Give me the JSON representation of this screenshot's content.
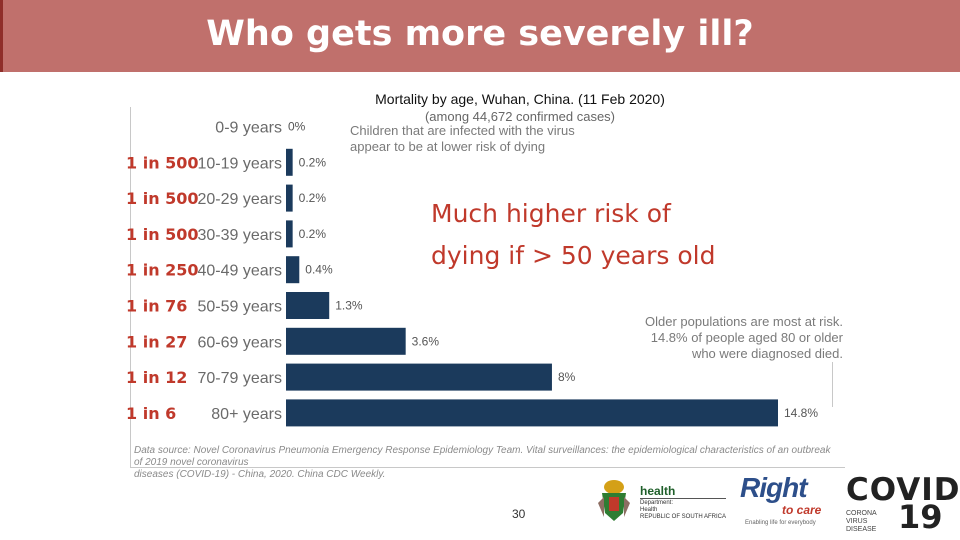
{
  "slide": {
    "title": "Who gets more severely ill?",
    "callout_line1": "Much higher risk of",
    "callout_line2": "dying if > 50 years old",
    "note_children_line1": "Children that are infected with the virus",
    "note_children_line2": "appear to be at lower risk of dying",
    "note_older_line1": "Older populations are most at risk.",
    "note_older_line2": "14.8% of people aged 80 or older",
    "note_older_line3": "who were diagnosed died.",
    "source_line1": "Data source: Novel Coronavirus Pneumonia Emergency Response Epidemiology Team. Vital surveillances: the epidemiological characteristics of an outbreak of 2019 novel coronavirus",
    "source_line2": "diseases (COVID-19) - China, 2020. China CDC Weekly.",
    "slide_number": "30"
  },
  "logos": {
    "health": "health",
    "health_sub1": "Department:",
    "health_sub2": "Health",
    "health_sub3": "REPUBLIC OF SOUTH AFRICA",
    "right_to_care_main": "Right",
    "right_to_care_sub": "to care",
    "right_to_care_tag": "Enabling life for everybody",
    "covid_word": "COVID",
    "covid_number": "19",
    "covid_sub": "CORONA VIRUS DISEASE"
  },
  "colors": {
    "title_bar": "#c0706c",
    "bar": "#1b3a5c",
    "risk_text": "#c0392b"
  },
  "chart_data": {
    "type": "bar",
    "orientation": "horizontal",
    "title": "Mortality by age, Wuhan, China. (11 Feb 2020)",
    "subtitle": "(among 44,672 confirmed cases)",
    "categories": [
      "0-9 years",
      "10-19 years",
      "20-29 years",
      "30-39 years",
      "40-49 years",
      "50-59 years",
      "60-69 years",
      "70-79 years",
      "80+ years"
    ],
    "values": [
      0,
      0.2,
      0.2,
      0.2,
      0.4,
      1.3,
      3.6,
      8,
      14.8
    ],
    "value_labels": [
      "0%",
      "0.2%",
      "0.2%",
      "0.2%",
      "0.4%",
      "1.3%",
      "3.6%",
      "8%",
      "14.8%"
    ],
    "risk_labels": [
      "",
      "1 in 500",
      "1 in 500",
      "1 in 500",
      "1 in 250",
      "1 in 76",
      "1 in 27",
      "1 in 12",
      "1 in 6"
    ],
    "xlim": [
      0,
      14.8
    ],
    "unit": "%"
  }
}
